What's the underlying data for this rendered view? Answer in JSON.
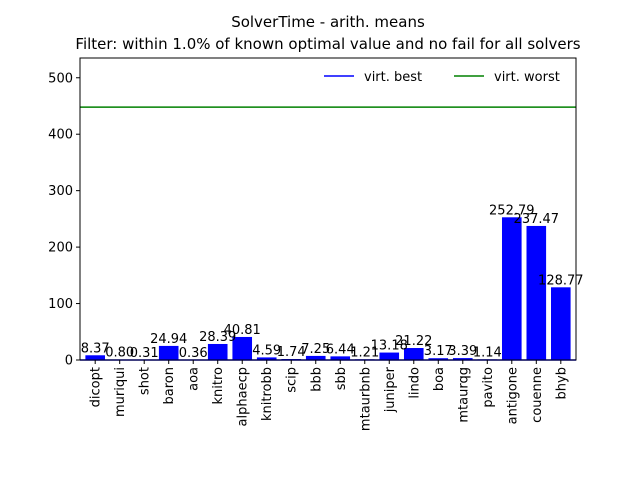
{
  "chart_data": {
    "type": "bar",
    "title": "SolverTime - arith. means",
    "subtitle": "Filter: within 1.0% of known optimal value and no fail for all solvers",
    "categories": [
      "dicopt",
      "muriqui",
      "shot",
      "baron",
      "aoa",
      "knitro",
      "alphaecp",
      "knitrobb",
      "scip",
      "bbb",
      "sbb",
      "mtaurbnb",
      "juniper",
      "lindo",
      "boa",
      "mtaurqg",
      "pavito",
      "antigone",
      "couenne",
      "bhyb"
    ],
    "values": [
      8.37,
      0.8,
      0.31,
      24.94,
      0.36,
      28.39,
      40.81,
      4.59,
      1.74,
      7.25,
      6.44,
      1.21,
      13.18,
      21.22,
      3.17,
      3.39,
      1.14,
      252.79,
      237.47,
      128.77
    ],
    "value_labels": [
      "8.37",
      "0.80",
      "0.31",
      "24.94",
      "0.36",
      "28.39",
      "40.81",
      "4.59",
      "1.74",
      "7.25",
      "6.44",
      "1.21",
      "13.18",
      "21.22",
      "3.17",
      "3.39",
      "1.14",
      "252.79",
      "237.47",
      "128.77"
    ],
    "bar_color": "#0000ff",
    "ylim": [
      0,
      535
    ],
    "yticks": [
      0,
      100,
      200,
      300,
      400,
      500
    ],
    "reference_lines": [
      {
        "name": "virt. best",
        "value": 0,
        "color": "#0000ff"
      },
      {
        "name": "virt. worst",
        "value": 448,
        "color": "#008000"
      }
    ],
    "legend_position": "top-right",
    "grid": false
  }
}
